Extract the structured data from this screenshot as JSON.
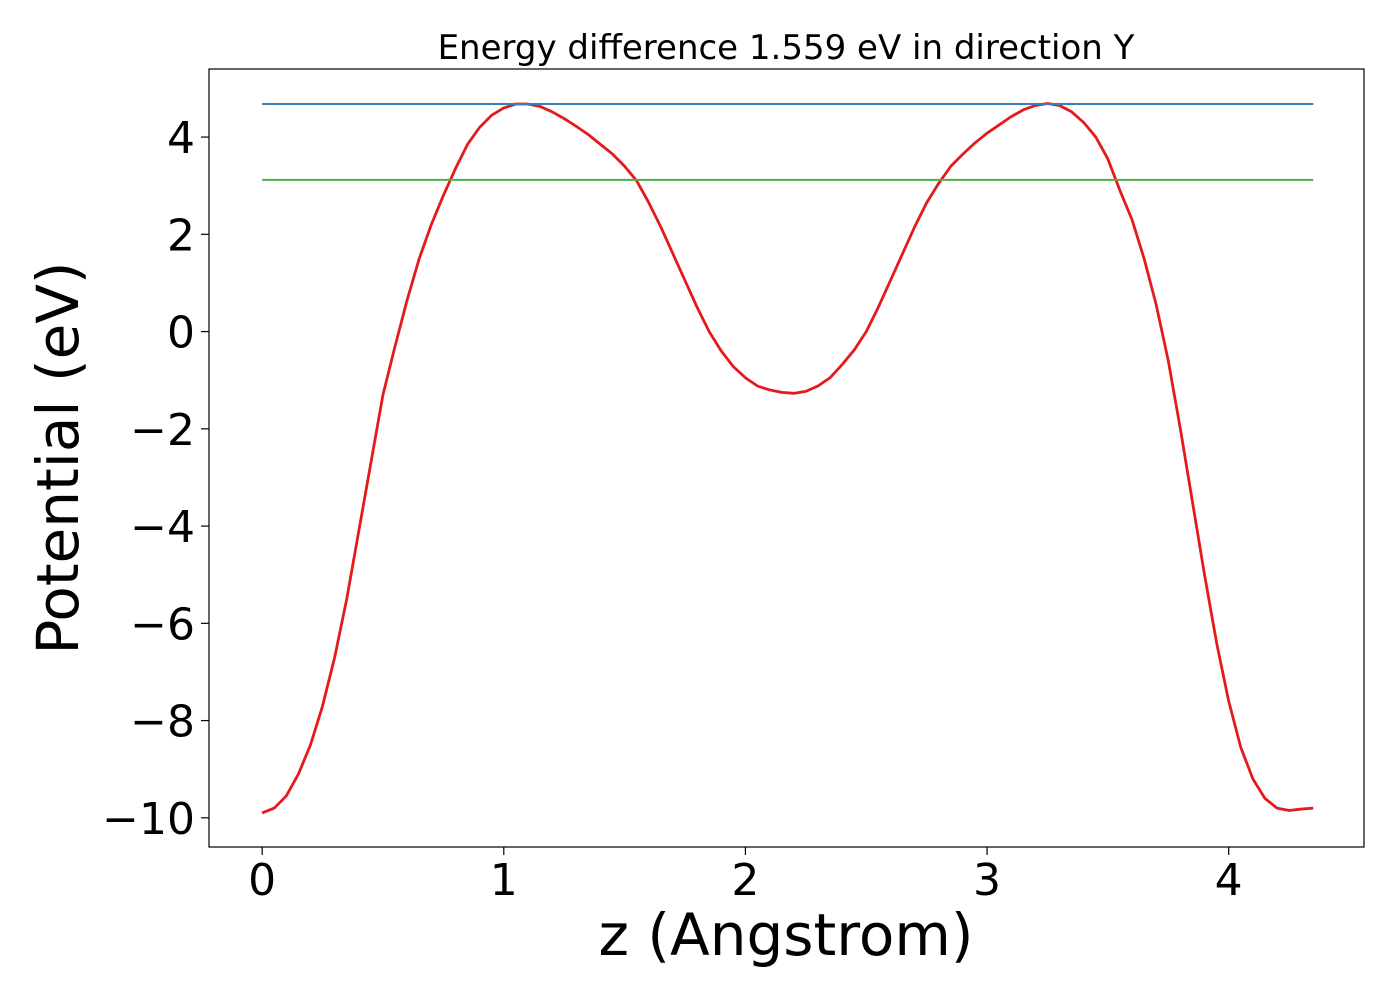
{
  "chart_data": {
    "type": "line",
    "title": "Energy difference 1.559 eV in direction Y",
    "xlabel": "z (Angstrom)",
    "ylabel": "Potential (eV)",
    "xlim": [
      -0.22,
      4.56
    ],
    "ylim": [
      -10.6,
      5.4
    ],
    "xticks": [
      0,
      1,
      2,
      3,
      4
    ],
    "xtick_labels": [
      "0",
      "1",
      "2",
      "3",
      "4"
    ],
    "yticks": [
      -10,
      -8,
      -6,
      -4,
      -2,
      0,
      2,
      4
    ],
    "ytick_labels": [
      "−10",
      "−8",
      "−6",
      "−4",
      "−2",
      "0",
      "2",
      "4"
    ],
    "grid": false,
    "series": [
      {
        "kind": "curve",
        "color": "#e41a1c",
        "x": [
          0.0,
          0.05,
          0.1,
          0.15,
          0.2,
          0.25,
          0.3,
          0.35,
          0.4,
          0.45,
          0.5,
          0.55,
          0.6,
          0.65,
          0.7,
          0.75,
          0.8,
          0.85,
          0.9,
          0.95,
          1.0,
          1.05,
          1.1,
          1.15,
          1.2,
          1.25,
          1.3,
          1.35,
          1.4,
          1.45,
          1.5,
          1.55,
          1.6,
          1.65,
          1.7,
          1.75,
          1.8,
          1.85,
          1.9,
          1.95,
          2.0,
          2.05,
          2.1,
          2.15,
          2.2,
          2.25,
          2.3,
          2.35,
          2.4,
          2.45,
          2.5,
          2.55,
          2.6,
          2.65,
          2.7,
          2.75,
          2.8,
          2.85,
          2.9,
          2.95,
          3.0,
          3.05,
          3.1,
          3.15,
          3.2,
          3.25,
          3.3,
          3.35,
          3.4,
          3.45,
          3.5,
          3.55,
          3.6,
          3.65,
          3.7,
          3.75,
          3.8,
          3.85,
          3.9,
          3.95,
          4.0,
          4.05,
          4.1,
          4.15,
          4.2,
          4.25,
          4.3,
          4.35
        ],
        "y": [
          -9.9,
          -9.8,
          -9.55,
          -9.1,
          -8.5,
          -7.7,
          -6.7,
          -5.5,
          -4.1,
          -2.7,
          -1.3,
          -0.3,
          0.65,
          1.5,
          2.2,
          2.8,
          3.35,
          3.85,
          4.2,
          4.45,
          4.6,
          4.68,
          4.68,
          4.63,
          4.52,
          4.38,
          4.22,
          4.05,
          3.85,
          3.65,
          3.4,
          3.1,
          2.65,
          2.15,
          1.6,
          1.05,
          0.5,
          0.0,
          -0.4,
          -0.72,
          -0.95,
          -1.12,
          -1.2,
          -1.25,
          -1.27,
          -1.23,
          -1.12,
          -0.95,
          -0.68,
          -0.38,
          0.0,
          0.5,
          1.05,
          1.6,
          2.15,
          2.65,
          3.05,
          3.4,
          3.65,
          3.88,
          4.08,
          4.25,
          4.42,
          4.56,
          4.65,
          4.69,
          4.65,
          4.52,
          4.3,
          4.0,
          3.55,
          2.9,
          2.3,
          1.5,
          0.55,
          -0.6,
          -2.0,
          -3.5,
          -5.0,
          -6.4,
          -7.6,
          -8.55,
          -9.2,
          -9.6,
          -9.8,
          -9.85,
          -9.82,
          -9.8
        ]
      },
      {
        "kind": "hline",
        "color": "#377eb8",
        "y": 4.68,
        "xmin": 0.0,
        "xmax": 4.35
      },
      {
        "kind": "hline",
        "color": "#4daf4a",
        "y": 3.12,
        "xmin": 0.0,
        "xmax": 4.35
      }
    ]
  }
}
